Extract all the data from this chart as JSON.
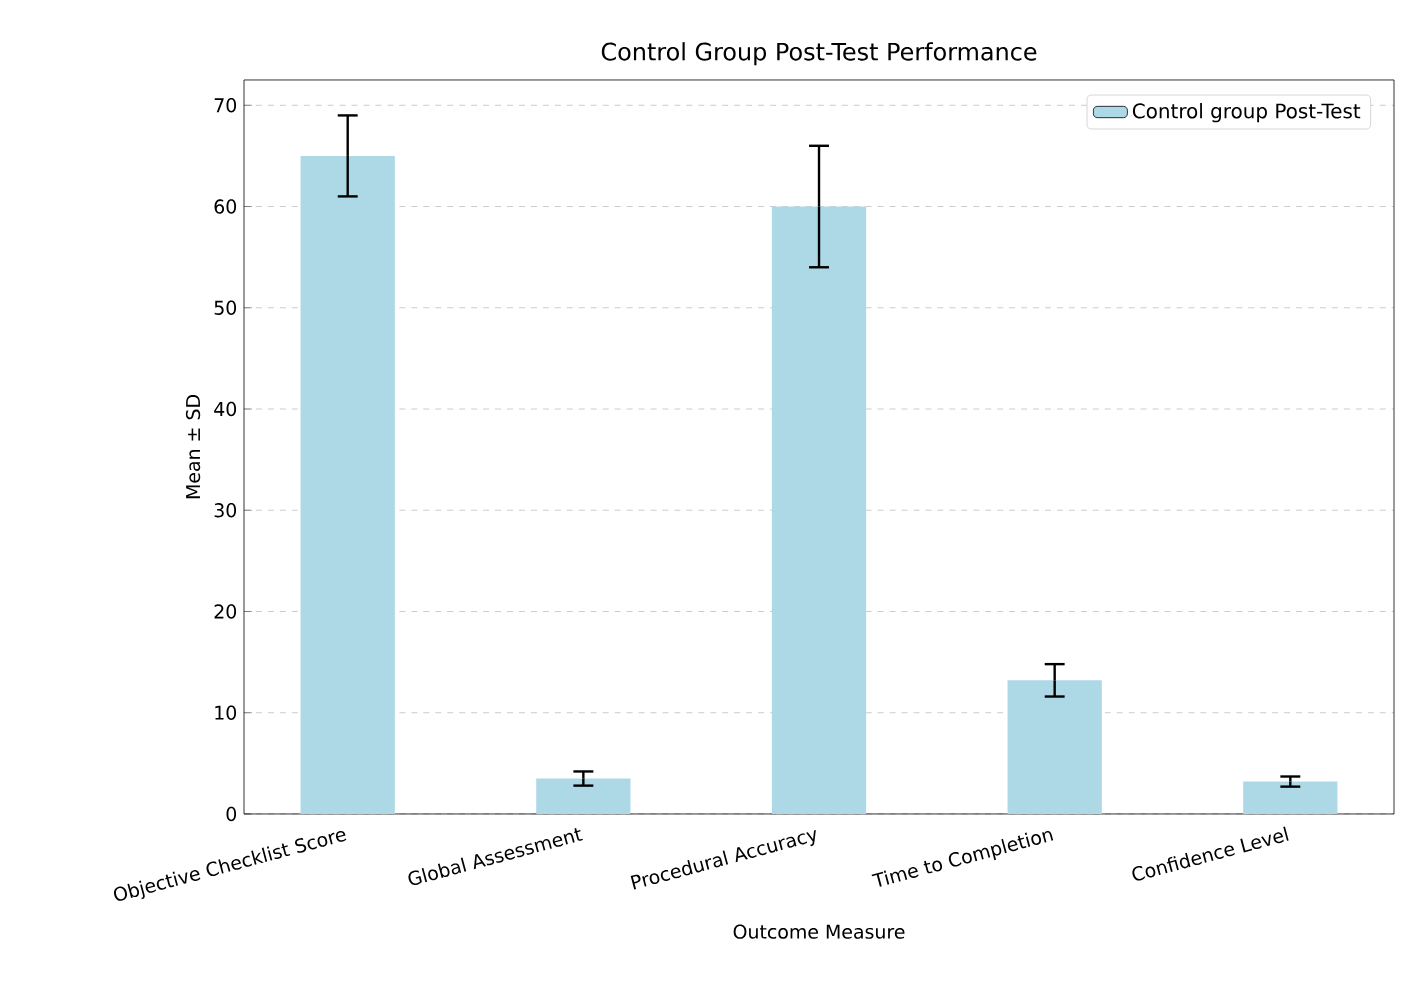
{
  "chart_data": {
    "type": "bar",
    "title": "Control Group Post-Test Performance",
    "xlabel": "Outcome Measure",
    "ylabel": "Mean ± SD",
    "categories": [
      "Objective Checklist Score",
      "Global Assessment",
      "Procedural Accuracy",
      "Time to Completion",
      "Confidence Level"
    ],
    "series": [
      {
        "name": "Control group Post-Test",
        "color": "#add8e6",
        "values": [
          65,
          3.5,
          60,
          13.2,
          3.2
        ],
        "errors": [
          4,
          0.7,
          6,
          1.6,
          0.5
        ]
      }
    ],
    "ylim": [
      0,
      72.5
    ],
    "yticks": [
      0,
      10,
      20,
      30,
      40,
      50,
      60,
      70
    ],
    "grid": "y",
    "legend": "top right"
  }
}
